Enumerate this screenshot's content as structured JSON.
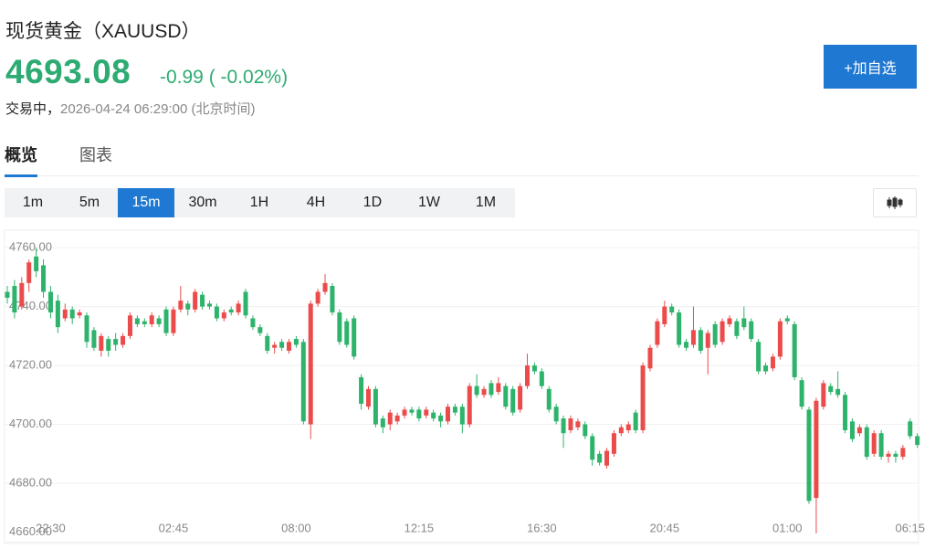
{
  "header": {
    "title": "现货黄金（XAUUSD）",
    "price": "4693.08",
    "change": "-0.99",
    "change_pct": "( -0.02%)",
    "status": "交易中，",
    "timestamp": "2026-04-24 06:29:00 (北京时间)",
    "button": "+加自选"
  },
  "tabs": {
    "items": [
      "概览",
      "图表"
    ],
    "selected": 0
  },
  "intervals": {
    "items": [
      "1m",
      "5m",
      "15m",
      "30m",
      "1H",
      "4H",
      "1D",
      "1W",
      "1M"
    ],
    "selected": 2
  },
  "chart_data": {
    "type": "candlestick",
    "up_color": "#eb4b4b",
    "down_color": "#2db36b",
    "grid": true,
    "ylim": [
      4660,
      4765
    ],
    "yticks": [
      {
        "value": 4660,
        "label": "4660.00"
      },
      {
        "value": 4680,
        "label": "4680.00"
      },
      {
        "value": 4700,
        "label": "4700.00"
      },
      {
        "value": 4720,
        "label": "4720.00"
      },
      {
        "value": 4740,
        "label": "4740.00"
      },
      {
        "value": 4760,
        "label": "4760.00"
      }
    ],
    "categories": [
      null,
      null,
      null,
      null,
      null,
      null,
      "22:30",
      null,
      null,
      null,
      null,
      null,
      null,
      null,
      null,
      null,
      null,
      null,
      null,
      null,
      null,
      null,
      null,
      "02:45",
      null,
      null,
      null,
      null,
      null,
      null,
      null,
      null,
      null,
      null,
      null,
      null,
      null,
      null,
      null,
      null,
      "08:00",
      null,
      null,
      null,
      null,
      null,
      null,
      null,
      null,
      null,
      null,
      null,
      null,
      null,
      null,
      null,
      null,
      "12:15",
      null,
      null,
      null,
      null,
      null,
      null,
      null,
      null,
      null,
      null,
      null,
      null,
      null,
      null,
      null,
      null,
      "16:30",
      null,
      null,
      null,
      null,
      null,
      null,
      null,
      null,
      null,
      null,
      null,
      null,
      null,
      null,
      null,
      null,
      "20:45",
      null,
      null,
      null,
      null,
      null,
      null,
      null,
      null,
      null,
      null,
      null,
      null,
      null,
      null,
      null,
      null,
      "01:00",
      null,
      null,
      null,
      null,
      null,
      null,
      null,
      null,
      null,
      null,
      null,
      null,
      null,
      null,
      null,
      null,
      "06:15",
      null
    ],
    "open": [
      4745,
      4747,
      4740,
      4748,
      4757,
      4754,
      4745,
      4742,
      4736,
      4739,
      4737,
      4737,
      4732,
      4725,
      4729,
      4729,
      4727,
      4730,
      4736,
      4735,
      4734,
      4736,
      4739,
      4731,
      4739,
      4741,
      4739,
      4744,
      4741,
      4740,
      4736,
      4739,
      4738,
      4745,
      4736,
      4733,
      4730,
      4726,
      4728,
      4725,
      4729,
      4728,
      4700,
      4741,
      4745,
      4747,
      4738,
      4735,
      4736,
      4716,
      4706,
      4712,
      4702,
      4700,
      4701,
      4703,
      4705,
      4705,
      4703,
      4704,
      4703,
      4701,
      4706,
      4706,
      4700,
      4713,
      4710,
      4714,
      4711,
      4713,
      4712,
      4705,
      4713,
      4720,
      4718,
      4712,
      4706,
      4702,
      4698,
      4699,
      4700,
      4696,
      4690,
      4686,
      4690,
      4697,
      4698,
      4704,
      4698,
      4719,
      4727,
      4734,
      4740,
      4738,
      4728,
      4727,
      4732,
      4726,
      4734,
      4728,
      4734,
      4735,
      4736,
      4735,
      4728,
      4720,
      4719,
      4723,
      4736,
      4734,
      4715,
      4705,
      4675,
      4706,
      4713,
      4712,
      4710,
      4701,
      4697,
      4699,
      4690,
      4697,
      4689,
      4690,
      4689,
      4701,
      4696
    ],
    "high": [
      4747,
      4749,
      4750,
      4756,
      4760,
      4756,
      4747,
      4744,
      4741,
      4740,
      4739,
      4738,
      4733,
      4731,
      4730,
      4731,
      4731,
      4738,
      4737,
      4736,
      4738,
      4737,
      4740,
      4740,
      4747,
      4742,
      4746,
      4745,
      4742,
      4741,
      4739,
      4740,
      4742,
      4746,
      4737,
      4734,
      4731,
      4728,
      4729,
      4729,
      4730,
      4729,
      4742,
      4746,
      4751,
      4748,
      4739,
      4736,
      4737,
      4717,
      4713,
      4713,
      4703,
      4705,
      4704,
      4706,
      4706,
      4706,
      4706,
      4705,
      4704,
      4707,
      4707,
      4707,
      4714,
      4717,
      4713,
      4715,
      4716,
      4714,
      4713,
      4714,
      4724,
      4721,
      4719,
      4713,
      4707,
      4703,
      4703,
      4702,
      4701,
      4697,
      4691,
      4692,
      4698,
      4700,
      4701,
      4705,
      4721,
      4727,
      4736,
      4742,
      4741,
      4739,
      4729,
      4740,
      4733,
      4732,
      4735,
      4736,
      4737,
      4736,
      4740,
      4736,
      4729,
      4721,
      4724,
      4736,
      4737,
      4735,
      4716,
      4706,
      4709,
      4715,
      4714,
      4718,
      4711,
      4702,
      4700,
      4700,
      4698,
      4698,
      4691,
      4691,
      4693,
      4702,
      4697
    ],
    "low": [
      4741,
      4736,
      4739,
      4745,
      4750,
      4743,
      4736,
      4731,
      4735,
      4734,
      4736,
      4726,
      4725,
      4723,
      4723,
      4725,
      4726,
      4729,
      4733,
      4733,
      4733,
      4733,
      4730,
      4730,
      4738,
      4737,
      4738,
      4739,
      4739,
      4735,
      4735,
      4737,
      4737,
      4736,
      4732,
      4730,
      4724,
      4724,
      4725,
      4724,
      4726,
      4700,
      4695,
      4740,
      4744,
      4737,
      4727,
      4726,
      4722,
      4705,
      4705,
      4699,
      4697,
      4698,
      4700,
      4702,
      4703,
      4701,
      4702,
      4701,
      4699,
      4700,
      4703,
      4697,
      4699,
      4709,
      4709,
      4709,
      4710,
      4705,
      4703,
      4704,
      4712,
      4717,
      4712,
      4704,
      4700,
      4692,
      4697,
      4698,
      4695,
      4686,
      4686,
      4685,
      4689,
      4696,
      4697,
      4697,
      4697,
      4718,
      4726,
      4733,
      4737,
      4726,
      4725,
      4726,
      4724,
      4717,
      4726,
      4727,
      4733,
      4729,
      4732,
      4728,
      4717,
      4717,
      4718,
      4722,
      4734,
      4715,
      4705,
      4673,
      4663,
      4705,
      4710,
      4709,
      4697,
      4694,
      4696,
      4688,
      4689,
      4688,
      4687,
      4687,
      4688,
      4695,
      4692
    ],
    "close": [
      4743,
      4738,
      4748,
      4755,
      4752,
      4745,
      4738,
      4733,
      4739,
      4736,
      4738,
      4728,
      4726,
      4730,
      4725,
      4727,
      4730,
      4737,
      4734,
      4734,
      4737,
      4734,
      4731,
      4739,
      4742,
      4739,
      4745,
      4740,
      4740,
      4736,
      4738,
      4738,
      4741,
      4737,
      4733,
      4731,
      4725,
      4727,
      4726,
      4728,
      4727,
      4701,
      4741,
      4745,
      4748,
      4738,
      4728,
      4727,
      4723,
      4707,
      4712,
      4700,
      4699,
      4704,
      4703,
      4705,
      4704,
      4702,
      4705,
      4702,
      4701,
      4706,
      4704,
      4700,
      4713,
      4710,
      4712,
      4710,
      4714,
      4706,
      4704,
      4713,
      4720,
      4718,
      4713,
      4705,
      4701,
      4697,
      4702,
      4701,
      4696,
      4688,
      4687,
      4691,
      4697,
      4699,
      4700,
      4698,
      4720,
      4726,
      4735,
      4740,
      4738,
      4727,
      4726,
      4732,
      4725,
      4731,
      4727,
      4735,
      4736,
      4730,
      4733,
      4729,
      4718,
      4718,
      4723,
      4735,
      4735,
      4716,
      4706,
      4674,
      4708,
      4714,
      4711,
      4710,
      4698,
      4695,
      4699,
      4689,
      4697,
      4689,
      4690,
      4689,
      4692,
      4696,
      4693
    ]
  }
}
